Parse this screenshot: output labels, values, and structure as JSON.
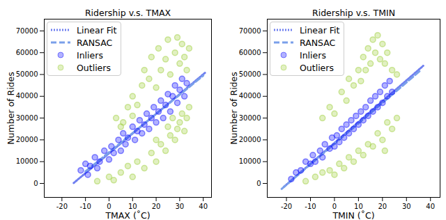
{
  "chart_data": [
    {
      "type": "scatter",
      "title": "Ridership v.s. TMAX",
      "x_label": "TMAX (˚C)",
      "y_label": "Number of Rides",
      "xlim": [
        -27.5,
        43.5
      ],
      "xticks": [
        -20,
        -10,
        0,
        10,
        20,
        30,
        40
      ],
      "ylim": [
        -6400,
        75400
      ],
      "yticks": [
        0,
        10000,
        20000,
        30000,
        40000,
        50000,
        60000,
        70000
      ],
      "legend": "upper left",
      "series": [
        {
          "name": "Linear Fit",
          "type": "line",
          "line_style": "dotted",
          "color": "#6f7ff0",
          "x": [
            -15,
            41
          ],
          "values": [
            200,
            51000
          ]
        },
        {
          "name": "RANSAC",
          "type": "line",
          "line_style": "dashed",
          "color": "#7aa0ea",
          "x": [
            -10,
            40
          ],
          "values": [
            5500,
            49500
          ]
        },
        {
          "name": "Inliers",
          "type": "scatter",
          "marker": "circle",
          "color": "#0000ff",
          "x": [
            -12,
            -10,
            -9,
            -8,
            -6,
            -5,
            -4,
            -2,
            0,
            1,
            2,
            4,
            5,
            6,
            7,
            8,
            10,
            11,
            12,
            13,
            14,
            15,
            16,
            17,
            18,
            19,
            20,
            21,
            22,
            23,
            24,
            25,
            26,
            27,
            28,
            29,
            30,
            31,
            32,
            33
          ],
          "values": [
            6000,
            9000,
            4000,
            8000,
            12000,
            7000,
            10000,
            15000,
            11000,
            17000,
            14000,
            20000,
            15000,
            23000,
            18000,
            21000,
            26000,
            20000,
            24000,
            29000,
            23000,
            27000,
            32000,
            25000,
            30000,
            35000,
            28000,
            33000,
            38000,
            30000,
            36000,
            41000,
            33000,
            40000,
            45000,
            37000,
            43000,
            48000,
            40000,
            46000
          ]
        },
        {
          "name": "Outliers",
          "type": "scatter",
          "marker": "circle",
          "color": "#9acd32",
          "x": [
            -5,
            0,
            2,
            5,
            8,
            10,
            12,
            15,
            18,
            20,
            22,
            24,
            26,
            28,
            29,
            30,
            31,
            32,
            33,
            34,
            27,
            25,
            20,
            3,
            5,
            8,
            10,
            12,
            14,
            15,
            17,
            18,
            20,
            21,
            22,
            24,
            25,
            26,
            28,
            29,
            30,
            31,
            32,
            33,
            34,
            10,
            6
          ],
          "values": [
            1000,
            3000,
            1500,
            5000,
            8000,
            3000,
            10000,
            7000,
            14000,
            10000,
            18000,
            15000,
            22000,
            20000,
            25000,
            28000,
            32000,
            24000,
            30000,
            35000,
            30000,
            26000,
            20000,
            30000,
            26000,
            35000,
            40000,
            36000,
            45000,
            52000,
            48000,
            58000,
            44000,
            62000,
            52000,
            57000,
            66000,
            50000,
            60000,
            67000,
            55000,
            64000,
            58000,
            52000,
            62000,
            31000,
            28000
          ]
        }
      ]
    },
    {
      "type": "scatter",
      "title": "Ridership v.s. TMIN",
      "x_label": "TMIN (˚C)",
      "y_label": "Number of Rides",
      "xlim": [
        -28,
        44
      ],
      "xticks": [
        -20,
        -10,
        0,
        10,
        20,
        30,
        40
      ],
      "ylim": [
        -6400,
        75400
      ],
      "yticks": [
        0,
        10000,
        20000,
        30000,
        40000,
        50000,
        60000,
        70000
      ],
      "legend": "upper left",
      "series": [
        {
          "name": "Linear Fit",
          "type": "line",
          "line_style": "dotted",
          "color": "#6f7ff0",
          "x": [
            -21,
            37
          ],
          "values": [
            -1500,
            54000
          ]
        },
        {
          "name": "RANSAC",
          "type": "line",
          "line_style": "dashed",
          "color": "#7aa0ea",
          "x": [
            -22,
            36
          ],
          "values": [
            -2500,
            52000
          ]
        },
        {
          "name": "Inliers",
          "type": "scatter",
          "marker": "circle",
          "color": "#0000ff",
          "x": [
            -18,
            -16,
            -14,
            -12,
            -10,
            -9,
            -8,
            -6,
            -5,
            -4,
            -2,
            -1,
            0,
            1,
            2,
            3,
            4,
            5,
            6,
            7,
            8,
            9,
            10,
            11,
            12,
            13,
            14,
            15,
            16,
            17,
            18,
            19,
            20,
            21,
            22,
            23,
            24
          ],
          "values": [
            2000,
            5000,
            6000,
            10000,
            9000,
            13000,
            10000,
            15000,
            12000,
            18000,
            16000,
            21000,
            17000,
            22000,
            19000,
            25000,
            21000,
            27000,
            23000,
            29000,
            25000,
            31000,
            27000,
            33000,
            29000,
            35000,
            31000,
            38000,
            33000,
            40000,
            35000,
            42000,
            37000,
            45000,
            40000,
            47000,
            42000
          ]
        },
        {
          "name": "Outliers",
          "type": "scatter",
          "marker": "circle",
          "color": "#9acd32",
          "x": [
            -12,
            -8,
            -5,
            -2,
            0,
            2,
            4,
            6,
            8,
            10,
            12,
            14,
            16,
            18,
            20,
            22,
            24,
            26,
            21,
            -5,
            -2,
            0,
            3,
            5,
            6,
            8,
            10,
            11,
            12,
            13,
            14,
            15,
            16,
            17,
            18,
            19,
            20,
            21,
            22,
            24,
            26
          ],
          "values": [
            1000,
            3000,
            5000,
            6000,
            4000,
            9000,
            7000,
            12000,
            10000,
            15000,
            13000,
            18000,
            17000,
            23000,
            20000,
            28000,
            25000,
            30000,
            15000,
            30000,
            35000,
            32000,
            42000,
            38000,
            48000,
            45000,
            52000,
            47000,
            58000,
            52000,
            62000,
            55000,
            66000,
            60000,
            68000,
            57000,
            64000,
            55000,
            60000,
            52000,
            50000
          ]
        }
      ]
    }
  ]
}
